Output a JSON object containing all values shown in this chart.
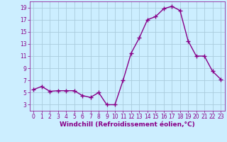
{
  "x": [
    0,
    1,
    2,
    3,
    4,
    5,
    6,
    7,
    8,
    9,
    10,
    11,
    12,
    13,
    14,
    15,
    16,
    17,
    18,
    19,
    20,
    21,
    22,
    23
  ],
  "y": [
    5.5,
    6.0,
    5.2,
    5.3,
    5.3,
    5.3,
    4.5,
    4.2,
    5.0,
    3.0,
    3.0,
    7.0,
    11.5,
    14.0,
    17.0,
    17.5,
    18.8,
    19.2,
    18.5,
    13.5,
    11.0,
    11.0,
    8.5,
    7.2
  ],
  "line_color": "#880088",
  "marker": "+",
  "marker_size": 4,
  "marker_linewidth": 1.0,
  "xlabel": "Windchill (Refroidissement éolien,°C)",
  "xlabel_fontsize": 6.5,
  "background_color": "#cceeff",
  "grid_color": "#aaccdd",
  "ylim": [
    2,
    20
  ],
  "xlim": [
    -0.5,
    23.5
  ],
  "yticks": [
    3,
    5,
    7,
    9,
    11,
    13,
    15,
    17,
    19
  ],
  "xticks": [
    0,
    1,
    2,
    3,
    4,
    5,
    6,
    7,
    8,
    9,
    10,
    11,
    12,
    13,
    14,
    15,
    16,
    17,
    18,
    19,
    20,
    21,
    22,
    23
  ],
  "tick_fontsize": 5.5,
  "tick_color": "#880088",
  "line_width": 1.0
}
